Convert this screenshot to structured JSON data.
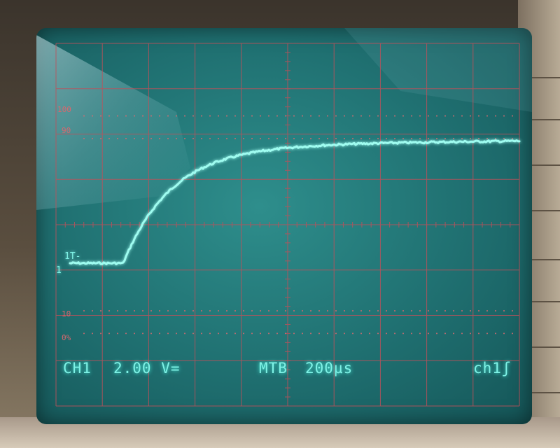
{
  "scope": {
    "channel_label": "CH1",
    "volts_per_div": "2.00 V=",
    "timebase_label": "MTB",
    "time_per_div": "200µs",
    "trigger_source": "ch1ʃ",
    "ground_marker": "1",
    "trigger_marker": "1T-",
    "graticule_labels": {
      "level_100": "100",
      "level_90": "90",
      "level_10": "10",
      "level_0": "0%"
    },
    "colors": {
      "trace": "#7ff2e6",
      "graticule": "#c0505a",
      "screen": "#1f6f70"
    }
  }
}
